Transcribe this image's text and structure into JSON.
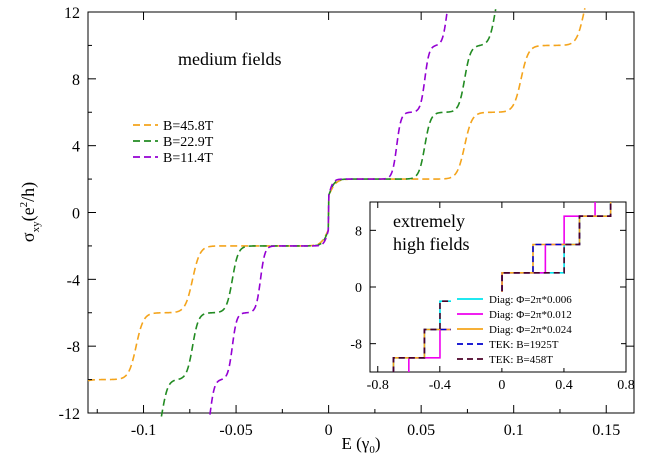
{
  "chart_data": [
    {
      "type": "line",
      "annotation": "medium fields",
      "xlabel": "E (γ",
      "xlabel_sub": "0",
      "xlabel_end": ")",
      "ylabel_main": "σ",
      "ylabel_sub": "xy",
      "ylabel_open": "(e",
      "ylabel_sup": "2",
      "ylabel_close": "/h)",
      "xlim": [
        -0.13,
        0.165
      ],
      "ylim": [
        -12,
        12
      ],
      "xticks": [
        -0.1,
        -0.05,
        0,
        0.05,
        0.1,
        0.15
      ],
      "xtick_labels": [
        "-0.1",
        "-0.05",
        "0",
        "0.05",
        "0.1",
        "0.15"
      ],
      "yticks": [
        -12,
        -8,
        -4,
        0,
        4,
        8,
        12
      ],
      "ytick_labels": [
        "-12",
        "-8",
        "-4",
        "0",
        "4",
        "8",
        "12"
      ],
      "legend_position": "upper-left",
      "series": [
        {
          "name": "B=45.8T",
          "color": "#f4a41c",
          "transitions": [
            0,
            0.0735,
            0.104,
            0.138
          ],
          "width": 0.002
        },
        {
          "name": "B=22.9T",
          "color": "#228b22",
          "transitions": [
            0,
            0.052,
            0.0735,
            0.09
          ],
          "width": 0.0016
        },
        {
          "name": "B=11.4T",
          "color": "#9400d3",
          "transitions": [
            0,
            0.0368,
            0.052,
            0.064
          ],
          "width": 0.0012
        }
      ]
    },
    {
      "type": "line",
      "annotation_line1": "extremely",
      "annotation_line2": "high fields",
      "xlim": [
        -0.85,
        0.8
      ],
      "ylim": [
        -12,
        12
      ],
      "xticks": [
        -0.8,
        -0.4,
        0,
        0.4,
        0.8
      ],
      "xtick_labels": [
        "-0.8",
        "-0.4",
        "0",
        "0.4",
        "0.8"
      ],
      "yticks": [
        -8,
        0,
        8
      ],
      "ytick_labels": [
        "-8",
        "0",
        "8"
      ],
      "legend_position": "lower-right",
      "series": [
        {
          "name": "Diag: Φ=2π*0.006",
          "color": "#00e5ee",
          "dash": "none",
          "transitions": [
            0,
            0.4,
            0.5,
            0.7
          ]
        },
        {
          "name": "Diag: Φ=2π*0.012",
          "color": "#ee00ee",
          "dash": "none",
          "transitions": [
            0,
            0.28,
            0.4,
            0.6
          ]
        },
        {
          "name": "Diag: Φ=2π*0.024",
          "color": "#f4a41c",
          "dash": "none",
          "transitions": [
            0,
            0.2,
            0.5,
            0.7
          ]
        },
        {
          "name": "TEK: B=1925T",
          "color": "#0000cd",
          "dash": "6,4",
          "transitions": [
            0,
            0.2,
            0.5,
            0.7
          ]
        },
        {
          "name": "TEK: B=458T",
          "color": "#4b0028",
          "dash": "6,4",
          "transitions": [
            0,
            0.4,
            0.5,
            0.7
          ]
        }
      ]
    }
  ]
}
